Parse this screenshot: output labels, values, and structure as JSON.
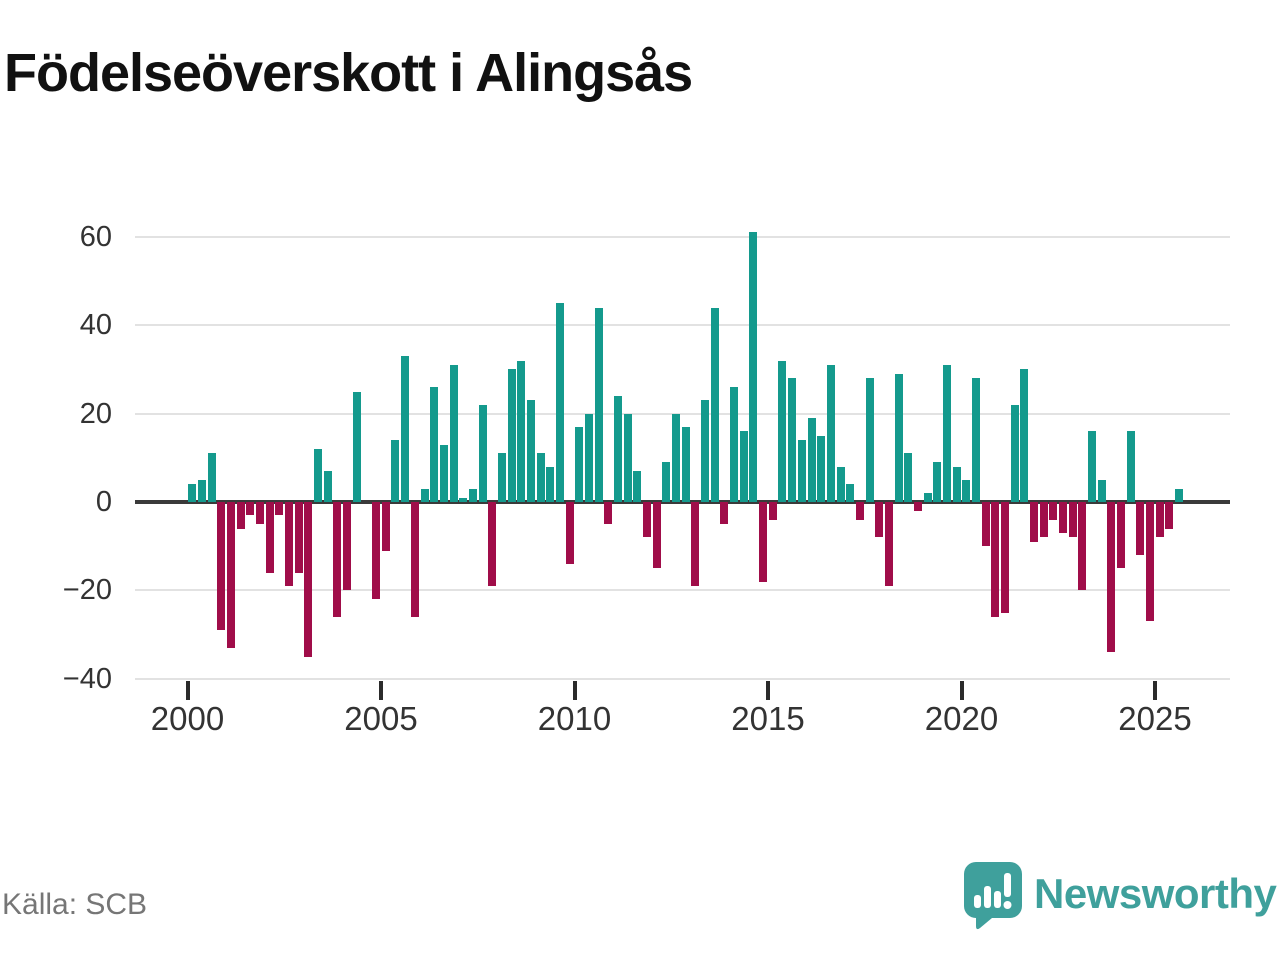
{
  "title": "Födelseöverskott i Alingsås",
  "source": "Källa: SCB",
  "logo": {
    "text": "Newsworthy",
    "color": "#3fa09c",
    "icon": "newsworthy-speech-bubble-chart-icon"
  },
  "chart_data": {
    "type": "bar",
    "title": "Födelseöverskott i Alingsås",
    "frequency": "quarterly",
    "start_year": 2000,
    "start_quarter": 1,
    "ylim": [
      -40,
      60
    ],
    "y_ticks": [
      60,
      40,
      20,
      0,
      -20,
      -40
    ],
    "x_ticks": [
      2000,
      2005,
      2010,
      2015,
      2020,
      2025
    ],
    "grid": "horizontal",
    "legend": "none",
    "positive_color": "#149a8d",
    "negative_color": "#a00d49",
    "values": [
      4,
      5,
      11,
      -29,
      -33,
      -6,
      -3,
      -5,
      -16,
      -3,
      -19,
      -16,
      -35,
      12,
      7,
      -26,
      -20,
      25,
      0,
      -22,
      -11,
      14,
      33,
      -26,
      3,
      26,
      13,
      31,
      1,
      3,
      22,
      -19,
      11,
      30,
      32,
      23,
      11,
      8,
      45,
      -14,
      17,
      20,
      44,
      -5,
      24,
      20,
      7,
      -8,
      -15,
      9,
      20,
      17,
      -19,
      23,
      44,
      -5,
      26,
      16,
      61,
      -18,
      -4,
      32,
      28,
      14,
      19,
      15,
      31,
      8,
      4,
      -4,
      28,
      -8,
      -19,
      29,
      11,
      -2,
      2,
      9,
      31,
      8,
      5,
      28,
      -10,
      -26,
      -25,
      22,
      30,
      -9,
      -8,
      -4,
      -7,
      -8,
      -20,
      16,
      5,
      -34,
      -15,
      16,
      -12,
      -27,
      -8,
      -6,
      3
    ]
  }
}
